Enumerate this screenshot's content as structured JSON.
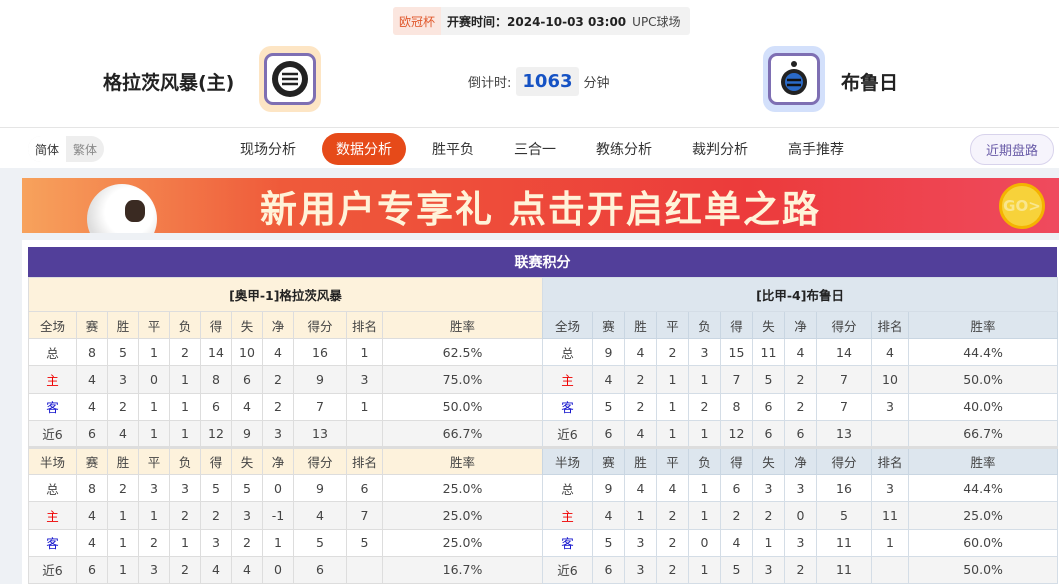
{
  "header": {
    "competition": "欧冠杯",
    "kickoff": "开赛时间：2024-10-03 03:00",
    "venue": "UPC球场",
    "home_team": "格拉茨风暴(主)",
    "away_team": "布鲁日",
    "countdown_label": "倒计时:",
    "countdown_value": "1063",
    "countdown_unit": "分钟",
    "home_logo": "sturm-graz-crest",
    "away_logo": "club-brugge-crest"
  },
  "nav": {
    "lang": [
      "简体",
      "繁体"
    ],
    "tabs": [
      "现场分析",
      "数据分析",
      "胜平负",
      "三合一",
      "教练分析",
      "裁判分析",
      "高手推荐"
    ],
    "active_tab": "数据分析",
    "recent": "近期盘路"
  },
  "banner": {
    "text": "新用户专享礼  点击开启红单之路",
    "go": "GO>"
  },
  "standings": {
    "title": "联赛积分",
    "columns": [
      "赛",
      "胜",
      "平",
      "负",
      "得",
      "失",
      "净",
      "得分",
      "排名",
      "胜率"
    ],
    "home": {
      "name": "[奥甲-1]格拉茨风暴",
      "full": {
        "label": "全场",
        "rows": [
          [
            "总",
            "8",
            "5",
            "1",
            "2",
            "14",
            "10",
            "4",
            "16",
            "1",
            "62.5%"
          ],
          [
            "主",
            "4",
            "3",
            "0",
            "1",
            "8",
            "6",
            "2",
            "9",
            "3",
            "75.0%"
          ],
          [
            "客",
            "4",
            "2",
            "1",
            "1",
            "6",
            "4",
            "2",
            "7",
            "1",
            "50.0%"
          ],
          [
            "近6",
            "6",
            "4",
            "1",
            "1",
            "12",
            "9",
            "3",
            "13",
            "",
            "66.7%"
          ]
        ]
      },
      "half": {
        "label": "半场",
        "rows": [
          [
            "总",
            "8",
            "2",
            "3",
            "3",
            "5",
            "5",
            "0",
            "9",
            "6",
            "25.0%"
          ],
          [
            "主",
            "4",
            "1",
            "1",
            "2",
            "2",
            "3",
            "-1",
            "4",
            "7",
            "25.0%"
          ],
          [
            "客",
            "4",
            "1",
            "2",
            "1",
            "3",
            "2",
            "1",
            "5",
            "5",
            "25.0%"
          ],
          [
            "近6",
            "6",
            "1",
            "3",
            "2",
            "4",
            "4",
            "0",
            "6",
            "",
            "16.7%"
          ]
        ]
      }
    },
    "away": {
      "name": "[比甲-4]布鲁日",
      "full": {
        "label": "全场",
        "rows": [
          [
            "总",
            "9",
            "4",
            "2",
            "3",
            "15",
            "11",
            "4",
            "14",
            "4",
            "44.4%"
          ],
          [
            "主",
            "4",
            "2",
            "1",
            "1",
            "7",
            "5",
            "2",
            "7",
            "10",
            "50.0%"
          ],
          [
            "客",
            "5",
            "2",
            "1",
            "2",
            "8",
            "6",
            "2",
            "7",
            "3",
            "40.0%"
          ],
          [
            "近6",
            "6",
            "4",
            "1",
            "1",
            "12",
            "6",
            "6",
            "13",
            "",
            "66.7%"
          ]
        ]
      },
      "half": {
        "label": "半场",
        "rows": [
          [
            "总",
            "9",
            "4",
            "4",
            "1",
            "6",
            "3",
            "3",
            "16",
            "3",
            "44.4%"
          ],
          [
            "主",
            "4",
            "1",
            "2",
            "1",
            "2",
            "2",
            "0",
            "5",
            "11",
            "25.0%"
          ],
          [
            "客",
            "5",
            "3",
            "2",
            "0",
            "4",
            "1",
            "3",
            "11",
            "1",
            "60.0%"
          ],
          [
            "近6",
            "6",
            "3",
            "2",
            "1",
            "5",
            "3",
            "2",
            "11",
            "",
            "50.0%"
          ]
        ]
      }
    }
  },
  "colors": {
    "accent": "#e64a19",
    "title_bar": "#523f9a",
    "home_label": "#ee0000",
    "away_label": "#1111cc"
  }
}
